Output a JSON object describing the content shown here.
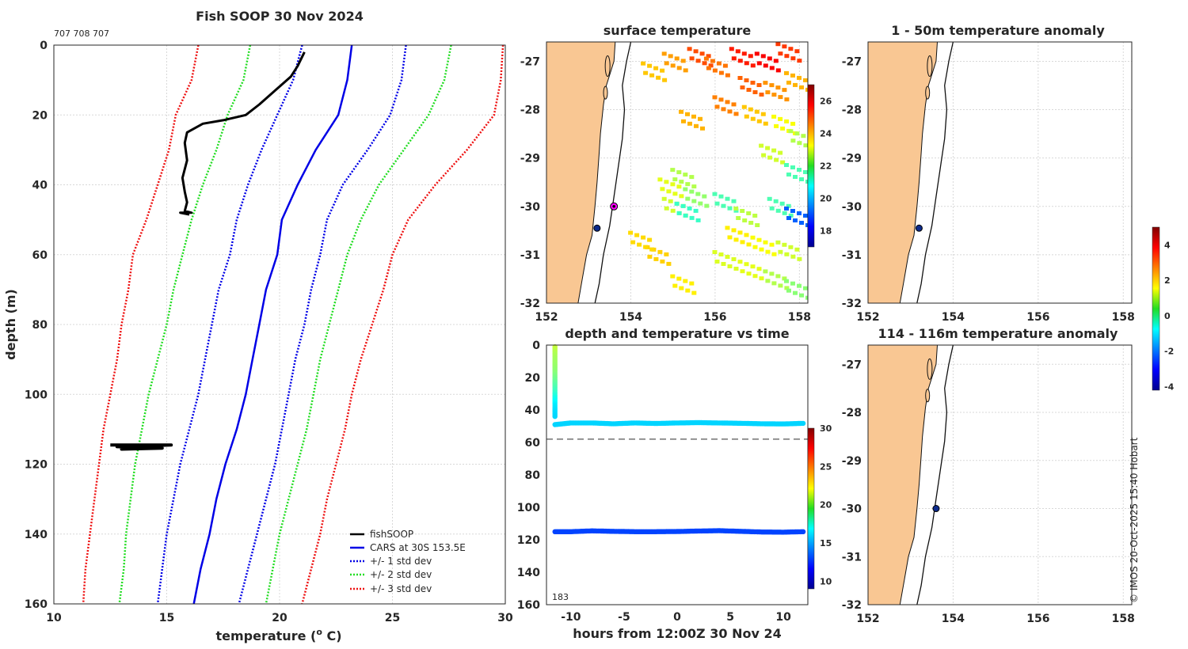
{
  "colors": {
    "land": "#F9C793",
    "coast": "#111111",
    "isobath": "#111111",
    "fishsoop": "#000000",
    "cars": "#0000E6",
    "std1": "#0000E6",
    "std2": "#22DD22",
    "std3": "#EE1111",
    "marker_fill": "#0D2B8C",
    "marker_ring": "#FF00FF"
  },
  "footer": {
    "credit": "© IMOS 20-Oct-2025 15:40 Hobart"
  },
  "chart_data": [
    {
      "id": "profile",
      "type": "line",
      "title": "Fish SOOP 30 Nov 2024",
      "ids_label": "707 708 707",
      "xlabel": "temperature (°C)",
      "xlabel_main": "temperature (",
      "xlabel_sup": "o",
      "xlabel_unit": " C)",
      "ylabel": "depth (m)",
      "xlim": [
        10,
        30
      ],
      "ylim": [
        0,
        160
      ],
      "xticks": [
        10,
        15,
        20,
        25,
        30
      ],
      "yticks": [
        0,
        20,
        40,
        60,
        80,
        100,
        120,
        140,
        160
      ],
      "legend_position": "bottom-right",
      "legend": [
        "fishSOOP",
        "CARS at 30S 153.5E",
        "+/- 1 std dev",
        "+/- 2 std dev",
        "+/- 3 std dev"
      ],
      "series": [
        {
          "name": "CARS at 30S 153.5E",
          "style": "solid",
          "color_key": "cars",
          "points": [
            [
              23.2,
              0
            ],
            [
              23,
              10
            ],
            [
              22.6,
              20
            ],
            [
              21.6,
              30
            ],
            [
              20.8,
              40
            ],
            [
              20.1,
              50
            ],
            [
              19.9,
              60
            ],
            [
              19.4,
              70
            ],
            [
              19.1,
              80
            ],
            [
              18.8,
              90
            ],
            [
              18.5,
              100
            ],
            [
              18.1,
              110
            ],
            [
              17.6,
              120
            ],
            [
              17.2,
              130
            ],
            [
              16.9,
              140
            ],
            [
              16.5,
              150
            ],
            [
              16.2,
              160
            ]
          ]
        },
        {
          "name": "+/- 1 std dev (upper)",
          "style": "dotted",
          "color_key": "std1",
          "points": [
            [
              25.6,
              0
            ],
            [
              25.4,
              10
            ],
            [
              24.9,
              20
            ],
            [
              23.9,
              30
            ],
            [
              22.8,
              40
            ],
            [
              22.1,
              50
            ],
            [
              21.8,
              60
            ],
            [
              21.4,
              70
            ],
            [
              21.1,
              80
            ],
            [
              20.7,
              90
            ],
            [
              20.4,
              100
            ],
            [
              20.1,
              110
            ],
            [
              19.8,
              120
            ],
            [
              19.4,
              130
            ],
            [
              19,
              140
            ],
            [
              18.6,
              150
            ],
            [
              18.2,
              160
            ]
          ]
        },
        {
          "name": "+/- 1 std dev (lower)",
          "style": "dotted",
          "color_key": "std1",
          "points": [
            [
              21,
              0
            ],
            [
              20.6,
              10
            ],
            [
              19.9,
              20
            ],
            [
              19.2,
              30
            ],
            [
              18.6,
              40
            ],
            [
              18.1,
              50
            ],
            [
              17.8,
              60
            ],
            [
              17.3,
              70
            ],
            [
              17,
              80
            ],
            [
              16.7,
              90
            ],
            [
              16.4,
              100
            ],
            [
              16,
              110
            ],
            [
              15.6,
              120
            ],
            [
              15.3,
              130
            ],
            [
              15,
              140
            ],
            [
              14.8,
              150
            ],
            [
              14.6,
              160
            ]
          ]
        },
        {
          "name": "+/- 2 std dev (upper)",
          "style": "dotted",
          "color_key": "std2",
          "points": [
            [
              27.6,
              0
            ],
            [
              27.3,
              10
            ],
            [
              26.6,
              20
            ],
            [
              25.5,
              30
            ],
            [
              24.4,
              40
            ],
            [
              23.6,
              50
            ],
            [
              23,
              60
            ],
            [
              22.6,
              70
            ],
            [
              22.2,
              80
            ],
            [
              21.8,
              90
            ],
            [
              21.5,
              100
            ],
            [
              21.2,
              110
            ],
            [
              20.8,
              120
            ],
            [
              20.4,
              130
            ],
            [
              20,
              140
            ],
            [
              19.7,
              150
            ],
            [
              19.4,
              160
            ]
          ]
        },
        {
          "name": "+/- 2 std dev (lower)",
          "style": "dotted",
          "color_key": "std2",
          "points": [
            [
              18.7,
              0
            ],
            [
              18.4,
              10
            ],
            [
              17.7,
              20
            ],
            [
              17.2,
              30
            ],
            [
              16.6,
              40
            ],
            [
              16.1,
              50
            ],
            [
              15.7,
              60
            ],
            [
              15.3,
              70
            ],
            [
              15,
              80
            ],
            [
              14.6,
              90
            ],
            [
              14.2,
              100
            ],
            [
              13.9,
              110
            ],
            [
              13.6,
              120
            ],
            [
              13.4,
              130
            ],
            [
              13.2,
              140
            ],
            [
              13.1,
              150
            ],
            [
              12.9,
              160
            ]
          ]
        },
        {
          "name": "+/- 3 std dev (upper)",
          "style": "dotted",
          "color_key": "std3",
          "points": [
            [
              29.9,
              0
            ],
            [
              29.8,
              10
            ],
            [
              29.5,
              20
            ],
            [
              28.3,
              30
            ],
            [
              26.9,
              40
            ],
            [
              25.7,
              50
            ],
            [
              25,
              60
            ],
            [
              24.6,
              70
            ],
            [
              24.1,
              80
            ],
            [
              23.6,
              90
            ],
            [
              23.2,
              100
            ],
            [
              22.9,
              110
            ],
            [
              22.5,
              120
            ],
            [
              22.1,
              130
            ],
            [
              21.8,
              140
            ],
            [
              21.4,
              150
            ],
            [
              21,
              160
            ]
          ]
        },
        {
          "name": "+/- 3 std dev (lower)",
          "style": "dotted",
          "color_key": "std3",
          "points": [
            [
              16.4,
              0
            ],
            [
              16.1,
              10
            ],
            [
              15.4,
              20
            ],
            [
              15.1,
              30
            ],
            [
              14.6,
              40
            ],
            [
              14.1,
              50
            ],
            [
              13.5,
              60
            ],
            [
              13.3,
              70
            ],
            [
              13,
              80
            ],
            [
              12.8,
              90
            ],
            [
              12.5,
              100
            ],
            [
              12.2,
              110
            ],
            [
              12,
              120
            ],
            [
              11.8,
              130
            ],
            [
              11.6,
              140
            ],
            [
              11.4,
              150
            ],
            [
              11.3,
              160
            ]
          ]
        },
        {
          "name": "fishSOOP",
          "style": "solid",
          "color_key": "fishsoop",
          "width": 3,
          "points": [
            [
              21.1,
              2
            ],
            [
              20.8,
              6
            ],
            [
              20.5,
              9
            ],
            [
              19.8,
              13
            ],
            [
              19.1,
              17
            ],
            [
              18.5,
              20
            ],
            [
              17.5,
              21.5
            ],
            [
              16.6,
              22.5
            ],
            [
              15.9,
              25
            ],
            [
              15.8,
              28
            ],
            [
              15.9,
              33
            ],
            [
              15.7,
              38
            ],
            [
              15.8,
              42
            ],
            [
              15.9,
              45
            ],
            [
              15.8,
              47.5
            ],
            [
              16.1,
              48
            ],
            [
              15.6,
              48
            ],
            [
              16,
              48.5
            ]
          ]
        },
        {
          "name": "fishSOOP (deep)",
          "style": "solid",
          "color_key": "fishsoop",
          "width": 4,
          "points": [
            [
              12.5,
              114.5
            ],
            [
              15.2,
              114.5
            ],
            [
              12.8,
              115
            ],
            [
              14.8,
              115.4
            ],
            [
              13.0,
              115.7
            ],
            [
              14.4,
              115.2
            ]
          ]
        }
      ]
    },
    {
      "id": "sst",
      "type": "heatmap",
      "title": "surface temperature",
      "xlim": [
        152,
        158.2
      ],
      "ylim": [
        -32,
        -26.6
      ],
      "xticks": [
        152,
        154,
        156,
        158
      ],
      "yticks": [
        -27,
        -28,
        -29,
        -30,
        -31,
        -32
      ],
      "colorbar": {
        "min": 17,
        "max": 27,
        "ticks": [
          18,
          20,
          22,
          24,
          26
        ]
      },
      "markers": [
        {
          "lon": 153.2,
          "lat": -30.45,
          "style": "dot"
        },
        {
          "lon": 153.6,
          "lat": -30.0,
          "style": "ringed"
        }
      ],
      "cells": [
        [
          154.5,
          -27.2,
          23.8
        ],
        [
          155.0,
          -27.0,
          24.2
        ],
        [
          155.6,
          -26.9,
          25.0
        ],
        [
          156.0,
          -27.1,
          24.6
        ],
        [
          156.6,
          -26.9,
          25.5
        ],
        [
          157.2,
          -27.0,
          25.8
        ],
        [
          157.7,
          -26.8,
          25.2
        ],
        [
          156.8,
          -27.5,
          24.8
        ],
        [
          157.4,
          -27.6,
          24.3
        ],
        [
          157.9,
          -27.4,
          24.0
        ],
        [
          156.2,
          -27.9,
          24.5
        ],
        [
          156.9,
          -28.1,
          23.8
        ],
        [
          157.6,
          -28.3,
          23.2
        ],
        [
          158.0,
          -28.6,
          22.5
        ],
        [
          155.4,
          -28.2,
          24.0
        ],
        [
          157.3,
          -28.9,
          22.8
        ],
        [
          157.9,
          -29.3,
          21.5
        ],
        [
          155.2,
          -29.4,
          22.5
        ],
        [
          154.9,
          -29.6,
          23.0
        ],
        [
          155.5,
          -29.8,
          22.2
        ],
        [
          155.0,
          -30.0,
          22.8
        ],
        [
          155.3,
          -30.1,
          21.3
        ],
        [
          156.2,
          -29.9,
          21.5
        ],
        [
          156.7,
          -30.2,
          22.6
        ],
        [
          157.5,
          -30.0,
          21.5
        ],
        [
          157.9,
          -30.2,
          19.2
        ],
        [
          156.5,
          -30.6,
          23.4
        ],
        [
          157.1,
          -30.8,
          23.2
        ],
        [
          157.7,
          -30.9,
          22.8
        ],
        [
          156.2,
          -31.1,
          22.9
        ],
        [
          156.8,
          -31.3,
          23.0
        ],
        [
          157.4,
          -31.5,
          22.5
        ],
        [
          157.9,
          -31.7,
          22.1
        ],
        [
          155.2,
          -31.6,
          23.4
        ],
        [
          154.6,
          -31.0,
          23.7
        ],
        [
          154.2,
          -30.7,
          23.6
        ]
      ]
    },
    {
      "id": "depth_time",
      "type": "scatter",
      "title": "depth and temperature vs time",
      "xlabel": "hours from 12:00Z 30 Nov 24",
      "xlim": [
        -12.3,
        12.3
      ],
      "ylim": [
        0,
        160
      ],
      "xticks": [
        -10,
        -5,
        0,
        5,
        10
      ],
      "yticks": [
        0,
        20,
        40,
        60,
        80,
        100,
        120,
        140,
        160
      ],
      "annotation": "183",
      "reference_depth": 58,
      "colorbar": {
        "min": 9,
        "max": 30,
        "ticks": [
          10,
          15,
          20,
          25,
          30
        ]
      },
      "series": [
        {
          "name": "descent",
          "hours": [
            -11.5,
            -11.5,
            -11.5,
            -11.5,
            -11.5,
            -11.5,
            -11.5,
            -11.5,
            -11.5,
            -11.5,
            -11.5,
            -11.5
          ],
          "depth": [
            1,
            5,
            9,
            13,
            17,
            21,
            25,
            29,
            33,
            37,
            41,
            45
          ],
          "temp": [
            21,
            20.5,
            20.2,
            20,
            19.7,
            19.2,
            18.6,
            18,
            17.2,
            16.5,
            16.2,
            16
          ]
        },
        {
          "name": "shallow track",
          "hours": [
            -11.5,
            -10,
            -8,
            -6,
            -4,
            -2,
            0,
            2,
            4,
            6,
            8,
            10,
            12
          ],
          "depth": [
            49,
            48,
            48,
            48.5,
            48,
            48.3,
            48,
            47.8,
            48,
            48.2,
            48.5,
            48.6,
            48.2
          ],
          "temp": [
            16,
            16,
            16,
            16,
            16,
            16,
            16,
            16,
            16,
            16,
            16,
            16,
            16
          ]
        },
        {
          "name": "deep track",
          "hours": [
            -11.5,
            -10,
            -8,
            -6,
            -4,
            -2,
            0,
            2,
            4,
            6,
            8,
            10,
            12
          ],
          "depth": [
            115,
            115,
            114.5,
            114.8,
            115,
            115,
            114.9,
            114.6,
            114.4,
            114.8,
            115.2,
            115.3,
            115
          ],
          "temp": [
            13,
            13,
            13,
            13,
            13,
            13,
            13,
            13,
            13,
            13,
            13,
            13,
            13
          ]
        }
      ]
    },
    {
      "id": "anom_1_50",
      "type": "heatmap",
      "title": "1 - 50m temperature anomaly",
      "xlim": [
        152,
        158.2
      ],
      "ylim": [
        -32,
        -26.6
      ],
      "xticks": [
        152,
        154,
        156,
        158
      ],
      "yticks": [
        -27,
        -28,
        -29,
        -30,
        -31,
        -32
      ],
      "markers": [
        {
          "lon": 153.2,
          "lat": -30.45,
          "style": "dot"
        }
      ],
      "cells": []
    },
    {
      "id": "anom_114_116",
      "type": "heatmap",
      "title": "114 - 116m temperature anomaly",
      "xlim": [
        152,
        158.2
      ],
      "ylim": [
        -32,
        -26.6
      ],
      "xticks": [
        152,
        154,
        156,
        158
      ],
      "yticks": [
        -27,
        -28,
        -29,
        -30,
        -31,
        -32
      ],
      "markers": [
        {
          "lon": 153.6,
          "lat": -30.0,
          "style": "dot"
        }
      ],
      "cells": []
    },
    {
      "id": "anomaly_colorbar",
      "type": "heatmap",
      "title": "",
      "colorbar": {
        "min": -4.2,
        "max": 5,
        "ticks": [
          -4,
          -2,
          0,
          2,
          4
        ]
      }
    }
  ]
}
